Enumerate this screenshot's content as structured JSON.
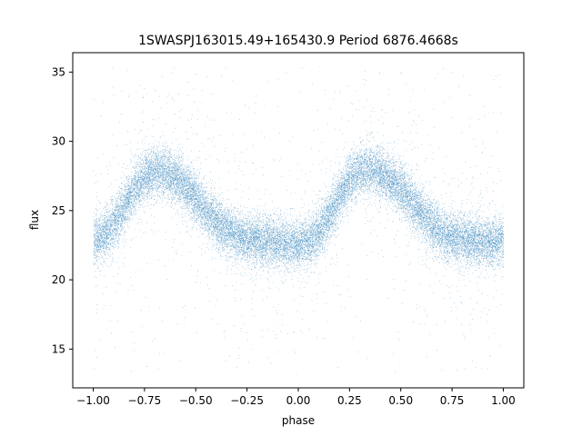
{
  "chart_data": {
    "type": "scatter",
    "title": "1SWASPJ163015.49+165430.9 Period 6876.4668s",
    "xlabel": "phase",
    "ylabel": "flux",
    "xlim": [
      -1.1,
      1.1
    ],
    "ylim": [
      12.2,
      36.4
    ],
    "x_ticks": [
      -1.0,
      -0.75,
      -0.5,
      -0.25,
      0.0,
      0.25,
      0.5,
      0.75,
      1.0
    ],
    "x_tick_labels": [
      "−1.00",
      "−0.75",
      "−0.50",
      "−0.25",
      "0.00",
      "0.25",
      "0.50",
      "0.75",
      "1.00"
    ],
    "y_ticks": [
      15,
      20,
      25,
      30,
      35
    ],
    "y_tick_labels": [
      "15",
      "20",
      "25",
      "30",
      "35"
    ],
    "grid": false,
    "marker_color": "#1f77b4",
    "series": [
      {
        "x": [
          -1.0,
          -0.95,
          -0.9,
          -0.85,
          -0.8,
          -0.75,
          -0.7,
          -0.65,
          -0.6,
          -0.55,
          -0.5,
          -0.45,
          -0.4,
          -0.35,
          -0.3,
          -0.25,
          -0.2,
          -0.15,
          -0.1,
          -0.05,
          0.0,
          0.05,
          0.1,
          0.15,
          0.2,
          0.25,
          0.3,
          0.35,
          0.4,
          0.45,
          0.5,
          0.55,
          0.6,
          0.65,
          0.7,
          0.75,
          0.8,
          0.85,
          0.9,
          0.95,
          1.0
        ],
        "y": [
          22.8,
          23.2,
          24.0,
          25.3,
          26.6,
          27.5,
          27.9,
          27.8,
          27.4,
          26.7,
          25.9,
          25.0,
          24.2,
          23.6,
          23.2,
          23.0,
          22.9,
          22.8,
          22.7,
          22.6,
          22.6,
          22.8,
          23.4,
          24.6,
          26.0,
          27.2,
          27.9,
          28.0,
          27.7,
          27.2,
          26.5,
          25.7,
          24.8,
          24.0,
          23.4,
          23.1,
          22.9,
          22.8,
          22.7,
          22.7,
          22.8
        ],
        "spread": 0.9,
        "outlier_range": [
          13.2,
          35.4
        ],
        "point_count": 24000
      }
    ]
  }
}
